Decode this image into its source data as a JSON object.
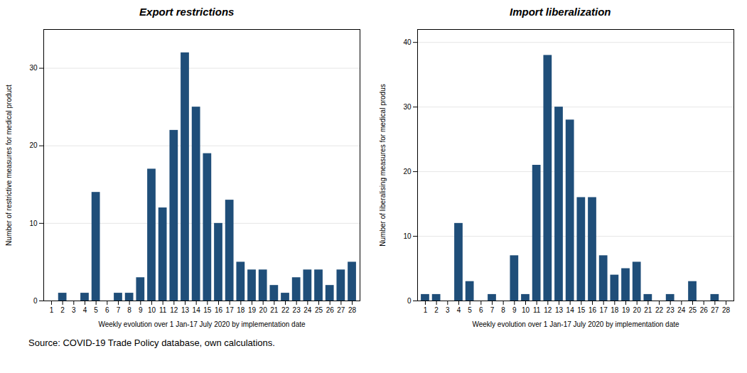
{
  "chart_data": [
    {
      "type": "bar",
      "title": "Export restrictions",
      "x": [
        1,
        2,
        3,
        4,
        5,
        6,
        7,
        8,
        9,
        10,
        11,
        12,
        13,
        14,
        15,
        16,
        17,
        18,
        19,
        20,
        21,
        22,
        23,
        24,
        25,
        26,
        27,
        28
      ],
      "values": [
        0,
        1,
        0,
        1,
        14,
        0,
        1,
        1,
        3,
        17,
        12,
        22,
        32,
        25,
        19,
        10,
        13,
        5,
        4,
        4,
        2,
        1,
        3,
        4,
        4,
        2,
        4,
        5
      ],
      "color": "#1f4e79",
      "xlabel": "Weekly evolution over 1 Jan-17 July 2020 by implementation date",
      "ylabel": "Number of restrictive measures for medical product",
      "xlim": [
        0.3,
        28.7
      ],
      "xticks": [
        1,
        2,
        3,
        4,
        5,
        6,
        7,
        8,
        9,
        10,
        11,
        12,
        13,
        14,
        15,
        16,
        17,
        18,
        19,
        20,
        21,
        22,
        23,
        24,
        25,
        26,
        27,
        28
      ],
      "ylim": [
        0,
        35
      ],
      "yticks": [
        0,
        10,
        20,
        30
      ],
      "grid": true
    },
    {
      "type": "bar",
      "title": "Import liberalization",
      "x": [
        1,
        2,
        3,
        4,
        5,
        6,
        7,
        8,
        9,
        10,
        11,
        12,
        13,
        14,
        15,
        16,
        17,
        18,
        19,
        20,
        21,
        22,
        23,
        24,
        25,
        26,
        27,
        28
      ],
      "values": [
        1,
        1,
        0,
        12,
        3,
        0,
        1,
        0,
        7,
        1,
        21,
        38,
        30,
        28,
        16,
        16,
        7,
        4,
        5,
        6,
        1,
        0,
        1,
        0,
        3,
        0,
        1,
        0
      ],
      "color": "#1f4e79",
      "xlabel": "Weekly evolution over 1 Jan-17 July 2020 by implementation date",
      "ylabel": "Number of liberalising measures for medical produs",
      "xlim": [
        0.3,
        28.7
      ],
      "xticks": [
        1,
        2,
        3,
        4,
        5,
        6,
        7,
        8,
        9,
        10,
        11,
        12,
        13,
        14,
        15,
        16,
        17,
        18,
        19,
        20,
        21,
        22,
        23,
        24,
        25,
        26,
        27,
        28
      ],
      "ylim": [
        0,
        42
      ],
      "yticks": [
        0,
        10,
        20,
        30,
        40
      ],
      "grid": true
    }
  ],
  "caption": "Source: COVID-19 Trade Policy database, own calculations."
}
